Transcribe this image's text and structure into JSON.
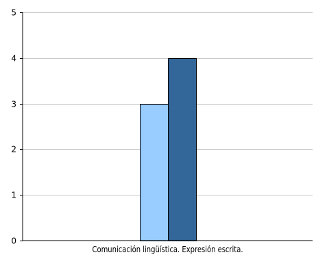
{
  "chart_data": {
    "type": "bar",
    "categories": [
      "Comunicación lingüística. Expresión escrita."
    ],
    "series": [
      {
        "values": [
          3
        ],
        "color": "#99ccff"
      },
      {
        "values": [
          4
        ],
        "color": "#336699"
      }
    ],
    "yticks": [
      "0",
      "1",
      "2",
      "3",
      "4",
      "5"
    ],
    "ylim": [
      0,
      5
    ],
    "grid": true,
    "legend": "none",
    "title": "",
    "xlabel": "",
    "ylabel": ""
  }
}
